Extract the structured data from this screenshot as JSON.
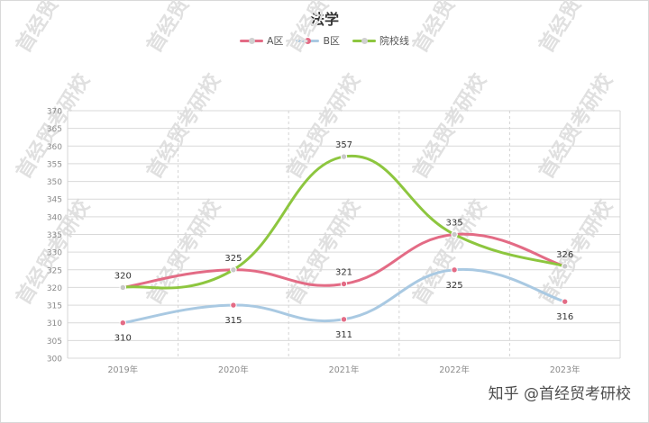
{
  "chart_data": {
    "type": "line",
    "title": "法学",
    "categories": [
      "2019年",
      "2020年",
      "2021年",
      "2022年",
      "2023年"
    ],
    "series": [
      {
        "name": "A区",
        "values": [
          320,
          325,
          321,
          335,
          326
        ],
        "color": "#e36b85",
        "marker": "#e36b85",
        "labels": [
          320,
          null,
          321,
          335,
          null
        ]
      },
      {
        "name": "B区",
        "values": [
          310,
          315,
          311,
          325,
          316
        ],
        "color": "#a9c9e2",
        "marker": "#e36b85",
        "labels": [
          310,
          315,
          311,
          325,
          316
        ]
      },
      {
        "name": "院校线",
        "values": [
          320,
          325,
          357,
          335,
          326
        ],
        "color": "#8dc63f",
        "marker": "#c8c8c8",
        "labels": [
          null,
          325,
          357,
          null,
          326
        ]
      }
    ],
    "ylim": [
      300,
      370
    ],
    "yticks": [
      300,
      305,
      310,
      315,
      320,
      325,
      330,
      335,
      340,
      345,
      350,
      355,
      360,
      365,
      370
    ],
    "grid": true,
    "legend": "top-center"
  },
  "watermark": {
    "text": "知乎 @首经贸考研校",
    "diagonal": "首经贸考研校"
  }
}
